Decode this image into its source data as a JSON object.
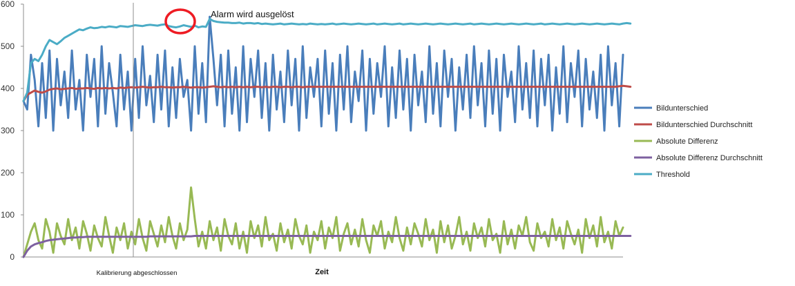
{
  "chart_data": {
    "type": "line",
    "xlabel": "Zeit",
    "ylabel": "",
    "ylim": [
      0,
      600
    ],
    "yticks": [
      0,
      100,
      200,
      300,
      400,
      500,
      600
    ],
    "legend_position": "right",
    "grid": false,
    "annotations": [
      {
        "text": "Alarm wird ausgelöst",
        "x": 48,
        "y": 565
      },
      {
        "text": "Kalibrierung abgeschlossen",
        "x": 29
      }
    ],
    "series": [
      {
        "name": "Bildunterschied",
        "color": "#4a7ebb",
        "values": [
          370,
          350,
          480,
          420,
          310,
          460,
          330,
          490,
          300,
          470,
          360,
          440,
          330,
          490,
          350,
          420,
          300,
          480,
          380,
          470,
          310,
          500,
          340,
          460,
          390,
          310,
          480,
          350,
          440,
          300,
          470,
          330,
          500,
          360,
          430,
          320,
          480,
          350,
          490,
          310,
          450,
          330,
          470,
          380,
          420,
          300,
          500,
          340,
          460,
          320,
          570,
          470,
          360,
          480,
          310,
          490,
          340,
          450,
          300,
          500,
          320,
          470,
          380,
          490,
          330,
          460,
          300,
          480,
          350,
          440,
          320,
          490,
          360,
          470,
          300,
          500,
          330,
          450,
          380,
          470,
          310,
          490,
          340,
          460,
          300,
          480,
          350,
          500,
          320,
          440,
          370,
          490,
          300,
          470,
          340,
          460,
          380,
          500,
          310,
          450,
          330,
          490,
          350,
          470,
          300,
          480,
          360,
          440,
          320,
          500,
          340,
          460,
          310,
          490,
          380,
          470,
          300,
          450,
          350,
          480,
          330,
          500,
          360,
          460,
          310,
          490,
          340,
          470,
          300,
          480,
          380,
          440,
          320,
          500,
          350,
          460,
          330,
          490,
          310,
          470,
          360,
          480,
          300,
          450,
          340,
          500,
          320,
          460,
          380,
          490,
          310,
          470,
          350,
          440,
          330,
          480,
          300,
          500,
          360,
          460,
          310,
          480
        ]
      },
      {
        "name": "Bildunterschied Durchschnitt",
        "color": "#be4b48",
        "values": [
          370,
          385,
          390,
          395,
          392,
          390,
          393,
          397,
          399,
          400,
          398,
          399,
          400,
          401,
          399,
          400,
          400,
          401,
          400,
          399,
          401,
          400,
          401,
          400,
          401,
          400,
          402,
          401,
          402,
          403,
          402,
          403,
          404,
          403,
          402,
          403,
          403,
          404,
          403,
          403,
          402,
          403,
          403,
          404,
          403,
          402,
          403,
          403,
          402,
          403,
          404,
          405,
          404,
          403,
          404,
          403,
          404,
          403,
          404,
          403,
          404,
          403,
          404,
          404,
          403,
          404,
          403,
          404,
          404,
          403,
          404,
          404,
          403,
          404,
          404,
          403,
          404,
          404,
          404,
          404,
          404,
          404,
          404,
          404,
          404,
          404,
          404,
          404,
          404,
          404,
          404,
          404,
          404,
          404,
          404,
          404,
          404,
          404,
          404,
          404,
          404,
          404,
          404,
          404,
          404,
          404,
          404,
          404,
          404,
          404,
          404,
          404,
          404,
          404,
          404,
          404,
          404,
          404,
          404,
          404,
          404,
          404,
          404,
          404,
          404,
          404,
          404,
          404,
          404,
          404,
          404,
          404,
          404,
          404,
          404,
          404,
          404,
          404,
          404,
          404,
          404,
          404,
          404,
          404,
          404,
          404,
          404,
          404,
          404,
          404,
          404,
          404,
          404,
          404,
          404,
          404,
          404,
          404,
          404,
          404,
          405,
          406,
          405,
          404
        ]
      },
      {
        "name": "Absolute Differenz",
        "color": "#98b954",
        "values": [
          0,
          30,
          60,
          80,
          40,
          20,
          90,
          60,
          10,
          80,
          50,
          30,
          90,
          40,
          70,
          20,
          85,
          55,
          15,
          75,
          45,
          25,
          95,
          50,
          10,
          70,
          40,
          80,
          20,
          60,
          30,
          90,
          45,
          15,
          85,
          55,
          25,
          75,
          35,
          95,
          50,
          20,
          80,
          40,
          65,
          165,
          90,
          25,
          60,
          20,
          85,
          40,
          70,
          15,
          90,
          50,
          30,
          80,
          20,
          60,
          10,
          85,
          45,
          75,
          25,
          95,
          40,
          55,
          15,
          80,
          35,
          65,
          20,
          90,
          50,
          30,
          75,
          10,
          60,
          40,
          85,
          20,
          70,
          45,
          95,
          15,
          55,
          80,
          30,
          65,
          25,
          90,
          40,
          10,
          75,
          50,
          85,
          20,
          60,
          35,
          95,
          45,
          15,
          70,
          30,
          80,
          55,
          25,
          90,
          40,
          65,
          10,
          85,
          35,
          75,
          20,
          50,
          95,
          30,
          60,
          15,
          80,
          45,
          70,
          25,
          90,
          40,
          55,
          10,
          85,
          30,
          65,
          20,
          75,
          50,
          95,
          35,
          15,
          80,
          45,
          60,
          25,
          90,
          40,
          70,
          20,
          85,
          55,
          30,
          65,
          10,
          90,
          45,
          75,
          25,
          95,
          35,
          60,
          20,
          85,
          50,
          70
        ]
      },
      {
        "name": "Absolute Differenz Durchschnitt",
        "color": "#7d60a0",
        "values": [
          0,
          15,
          25,
          30,
          33,
          35,
          38,
          40,
          41,
          42,
          43,
          44,
          45,
          46,
          46,
          47,
          47,
          48,
          48,
          48,
          48,
          48,
          48,
          48,
          48,
          48,
          48,
          48,
          48,
          48,
          48,
          48,
          48,
          48,
          49,
          49,
          49,
          49,
          49,
          49,
          49,
          49,
          49,
          49,
          49,
          49,
          50,
          50,
          50,
          50,
          50,
          50,
          50,
          50,
          50,
          50,
          50,
          50,
          50,
          50,
          50,
          50,
          50,
          50,
          50,
          50,
          50,
          50,
          50,
          50,
          50,
          50,
          50,
          50,
          50,
          50,
          50,
          50,
          50,
          50,
          50,
          50,
          50,
          50,
          50,
          50,
          50,
          50,
          50,
          50,
          50,
          50,
          50,
          50,
          50,
          50,
          50,
          50,
          50,
          50,
          50,
          50,
          50,
          50,
          50,
          50,
          50,
          50,
          50,
          50,
          50,
          50,
          50,
          50,
          50,
          50,
          50,
          50,
          50,
          50,
          50,
          50,
          50,
          50,
          50,
          50,
          50,
          50,
          50,
          50,
          50,
          50,
          50,
          50,
          50,
          50,
          50,
          50,
          50,
          50,
          50,
          50,
          50,
          50,
          50,
          50,
          50,
          50,
          50,
          50,
          50,
          50,
          50,
          50,
          50,
          50,
          50,
          50,
          50,
          50,
          50,
          50,
          50,
          50
        ]
      },
      {
        "name": "Threshold",
        "color": "#4bacc6",
        "values": [
          370,
          390,
          460,
          470,
          465,
          480,
          500,
          515,
          510,
          505,
          512,
          520,
          525,
          530,
          535,
          540,
          538,
          542,
          545,
          543,
          544,
          546,
          545,
          547,
          546,
          545,
          548,
          547,
          546,
          548,
          550,
          549,
          548,
          550,
          551,
          550,
          549,
          551,
          552,
          548,
          546,
          545,
          547,
          550,
          548,
          546,
          549,
          545,
          547,
          546,
          565,
          560,
          558,
          557,
          556,
          556,
          555,
          555,
          556,
          554,
          555,
          555,
          554,
          555,
          553,
          554,
          553,
          552,
          553,
          554,
          552,
          553,
          554,
          553,
          552,
          553,
          552,
          554,
          553,
          552,
          553,
          552,
          553,
          554,
          552,
          553,
          554,
          553,
          552,
          553,
          554,
          553,
          552,
          553,
          554,
          552,
          553,
          554,
          553,
          552,
          553,
          554,
          552,
          553,
          554,
          553,
          552,
          553,
          554,
          553,
          552,
          553,
          554,
          553,
          552,
          553,
          554,
          553,
          552,
          553,
          554,
          552,
          553,
          554,
          553,
          552,
          553,
          554,
          553,
          552,
          553,
          554,
          553,
          552,
          553,
          554,
          553,
          552,
          553,
          554,
          552,
          553,
          554,
          553,
          552,
          553,
          554,
          553,
          552,
          553,
          554,
          553,
          552,
          553,
          554,
          553,
          552,
          553,
          554,
          553,
          552,
          554,
          555,
          554
        ]
      }
    ]
  }
}
